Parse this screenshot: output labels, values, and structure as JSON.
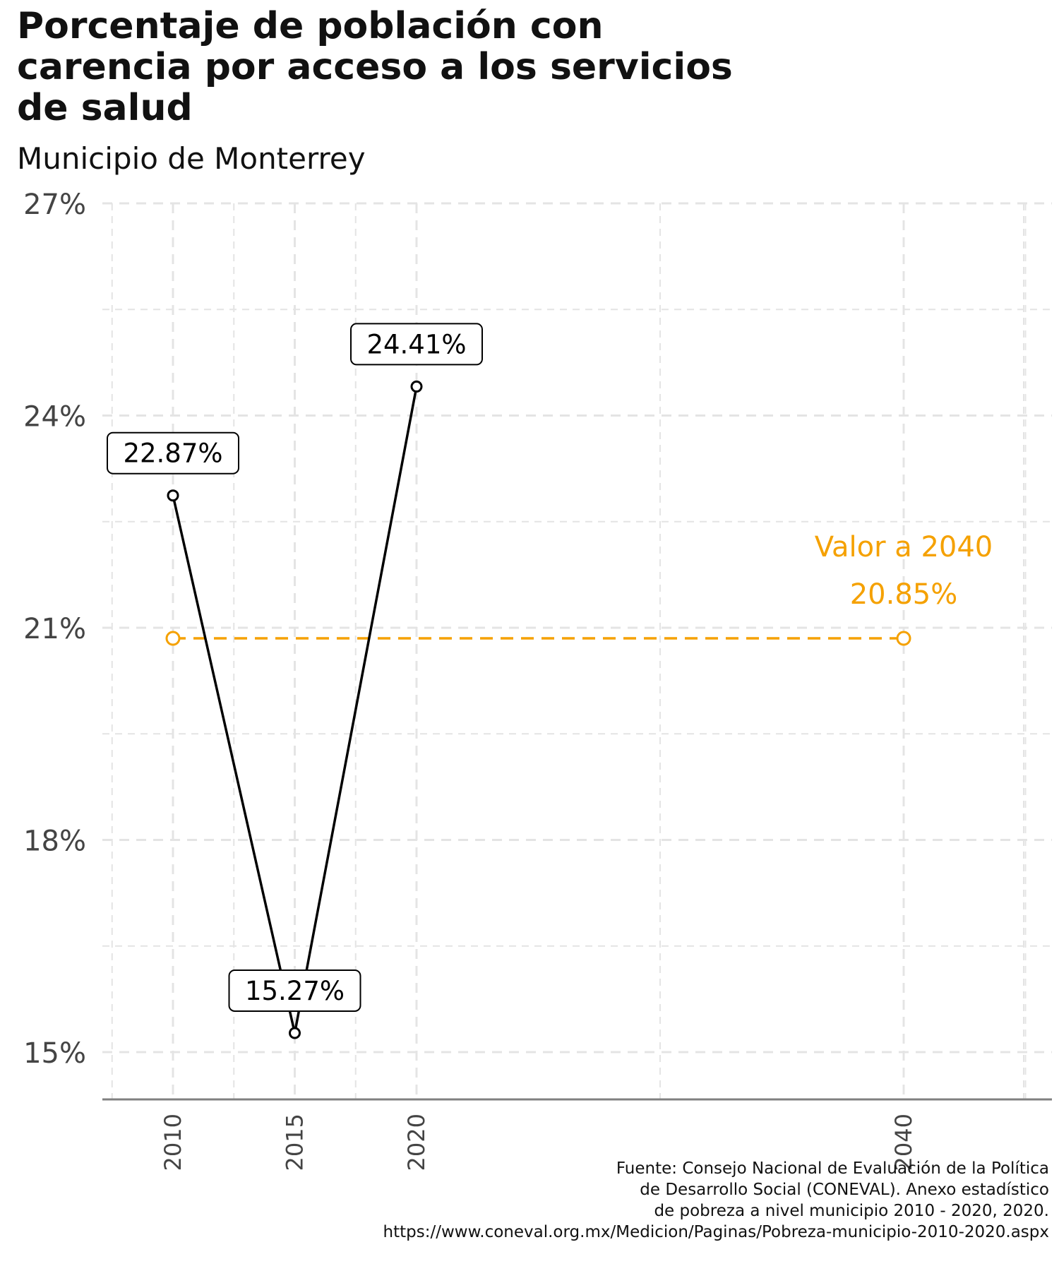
{
  "title_lines": [
    "Porcentaje de población con",
    "carencia por acceso a los servicios",
    "de salud"
  ],
  "subtitle": "Municipio de Monterrey",
  "caption_lines": [
    "Fuente: Consejo Nacional de Evaluación de la Política",
    "de Desarrollo Social (CONEVAL). Anexo estadístico",
    "de pobreza a nivel municipio 2010 - 2020, 2020.",
    "https://www.coneval.org.mx/Medicion/Paginas/Pobreza-municipio-2010-2020.aspx"
  ],
  "colors": {
    "series": "#000000",
    "target": "#f5a100",
    "grid": "#e4e4e4",
    "axis": "#808080",
    "tick_text": "#444444"
  },
  "chart_data": {
    "type": "line",
    "x_ticks": [
      2010,
      2015,
      2020,
      2040
    ],
    "xlim": [
      2007.5,
      2048.5
    ],
    "y_ticks": [
      15,
      18,
      21,
      24,
      27
    ],
    "y_tick_labels": [
      "15%",
      "18%",
      "21%",
      "24%",
      "27%"
    ],
    "ylim": [
      15,
      27
    ],
    "grid": true,
    "series": [
      {
        "x": [
          2010,
          2015,
          2020
        ],
        "values": [
          22.87,
          15.27,
          24.41
        ],
        "labels": [
          "22.87%",
          "15.27%",
          "24.41%"
        ]
      }
    ],
    "target_line": {
      "x": [
        2010,
        2040
      ],
      "value": 20.85
    },
    "annotation": {
      "line1": "Valor a 2040",
      "line2": "20.85%"
    }
  }
}
